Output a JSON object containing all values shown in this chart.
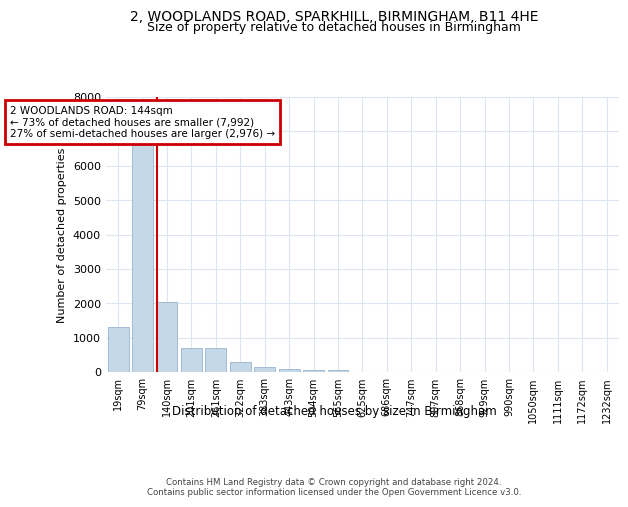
{
  "title": "2, WOODLANDS ROAD, SPARKHILL, BIRMINGHAM, B11 4HE",
  "subtitle": "Size of property relative to detached houses in Birmingham",
  "xlabel": "Distribution of detached houses by size in Birmingham",
  "ylabel": "Number of detached properties",
  "bin_labels": [
    "19sqm",
    "79sqm",
    "140sqm",
    "201sqm",
    "261sqm",
    "322sqm",
    "383sqm",
    "443sqm",
    "504sqm",
    "565sqm",
    "625sqm",
    "686sqm",
    "747sqm",
    "807sqm",
    "868sqm",
    "929sqm",
    "990sqm",
    "1050sqm",
    "1111sqm",
    "1172sqm",
    "1232sqm"
  ],
  "bar_values": [
    1300,
    6600,
    2050,
    700,
    700,
    280,
    150,
    100,
    60,
    60,
    0,
    0,
    0,
    0,
    0,
    0,
    0,
    0,
    0,
    0,
    0
  ],
  "bar_color": "#c5d8e8",
  "bar_edge_color": "#a0bcd4",
  "grid_color": "#dce6f0",
  "marker_bin_index": 2,
  "marker_color": "#cc0000",
  "ylim": [
    0,
    8000
  ],
  "yticks": [
    0,
    1000,
    2000,
    3000,
    4000,
    5000,
    6000,
    7000,
    8000
  ],
  "annotation_text": "2 WOODLANDS ROAD: 144sqm\n← 73% of detached houses are smaller (7,992)\n27% of semi-detached houses are larger (2,976) →",
  "annotation_box_color": "#cc0000",
  "footer_line1": "Contains HM Land Registry data © Crown copyright and database right 2024.",
  "footer_line2": "Contains public sector information licensed under the Open Government Licence v3.0.",
  "bg_color": "#ffffff",
  "title_fontsize": 10,
  "subtitle_fontsize": 9
}
